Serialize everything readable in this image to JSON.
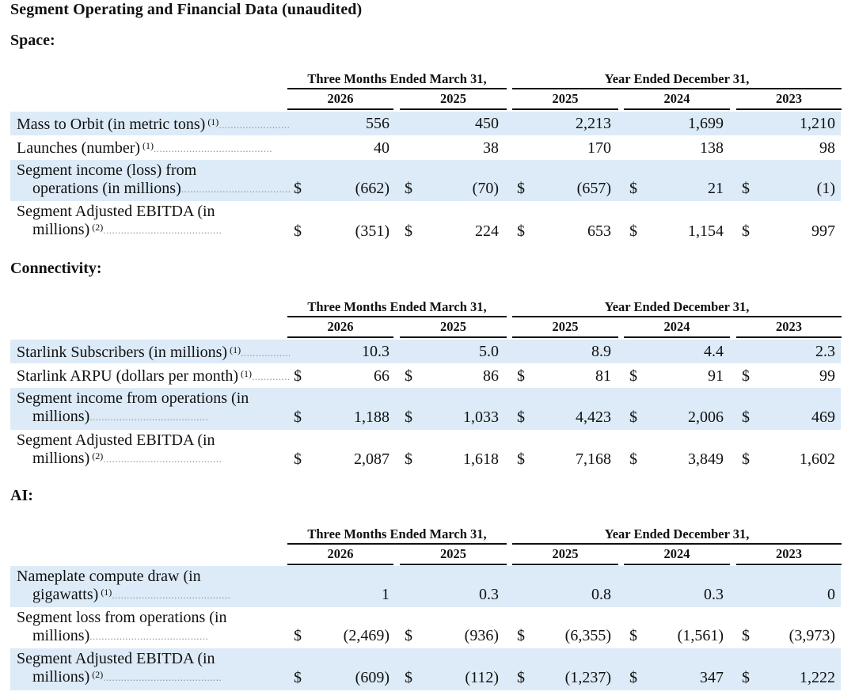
{
  "title": "Segment Operating and Financial Data (unaudited)",
  "sections": [
    {
      "name": "Space:",
      "period_headers": [
        "Three Months Ended March 31,",
        "Year Ended December 31,"
      ],
      "years": [
        "2026",
        "2025",
        "2025",
        "2024",
        "2023"
      ],
      "rows": [
        {
          "label_1": "Mass to Orbit (in metric tons)",
          "label_2": "",
          "footnote": "(1)",
          "dollar": false,
          "values": [
            "556",
            "450",
            "2,213",
            "1,699",
            "1,210"
          ]
        },
        {
          "label_1": "Launches (number)",
          "label_2": "",
          "footnote": "(1)",
          "dollar": false,
          "values": [
            "40",
            "38",
            "170",
            "138",
            "98"
          ]
        },
        {
          "label_1": "Segment income (loss) from",
          "label_2": "operations (in millions)",
          "footnote": "",
          "dollar": true,
          "values": [
            "(662)",
            "(70)",
            "(657)",
            "21",
            "(1)"
          ]
        },
        {
          "label_1": "Segment Adjusted EBITDA (in",
          "label_2": "millions)",
          "footnote": "(2)",
          "dollar": true,
          "values": [
            "(351)",
            "224",
            "653",
            "1,154",
            "997"
          ]
        }
      ]
    },
    {
      "name": "Connectivity:",
      "period_headers": [
        "Three Months Ended March 31,",
        "Year Ended December 31,"
      ],
      "years": [
        "2026",
        "2025",
        "2025",
        "2024",
        "2023"
      ],
      "rows": [
        {
          "label_1": "Starlink Subscribers (in millions)",
          "label_2": "",
          "footnote": "(1)",
          "dollar": false,
          "values": [
            "10.3",
            "5.0",
            "8.9",
            "4.4",
            "2.3"
          ]
        },
        {
          "label_1": "Starlink ARPU (dollars per month)",
          "label_2": "",
          "footnote": "(1)",
          "dollar": true,
          "values": [
            "66",
            "86",
            "81",
            "91",
            "99"
          ]
        },
        {
          "label_1": "Segment income from operations (in",
          "label_2": "millions)",
          "footnote": "",
          "dollar": true,
          "values": [
            "1,188",
            "1,033",
            "4,423",
            "2,006",
            "469"
          ]
        },
        {
          "label_1": "Segment Adjusted EBITDA (in",
          "label_2": "millions)",
          "footnote": "(2)",
          "dollar": true,
          "values": [
            "2,087",
            "1,618",
            "7,168",
            "3,849",
            "1,602"
          ]
        }
      ]
    },
    {
      "name": "AI:",
      "period_headers": [
        "Three Months Ended March 31,",
        "Year Ended December 31,"
      ],
      "years": [
        "2026",
        "2025",
        "2025",
        "2024",
        "2023"
      ],
      "rows": [
        {
          "label_1": "Nameplate compute draw (in",
          "label_2": "gigawatts)",
          "footnote": "(1)",
          "dollar": false,
          "values": [
            "1",
            "0.3",
            "0.8",
            "0.3",
            "0"
          ]
        },
        {
          "label_1": "Segment loss from operations (in",
          "label_2": "millions)",
          "footnote": "",
          "dollar": true,
          "values": [
            "(2,469)",
            "(936)",
            "(6,355)",
            "(1,561)",
            "(3,973)"
          ]
        },
        {
          "label_1": "Segment Adjusted EBITDA (in",
          "label_2": "millions)",
          "footnote": "(2)",
          "dollar": true,
          "values": [
            "(609)",
            "(112)",
            "(1,237)",
            "347",
            "1,222"
          ]
        }
      ]
    }
  ],
  "currency_symbol": "$",
  "colors": {
    "shade": "#dcebf7",
    "text": "#111111",
    "leader_dots": "#8a9099"
  }
}
